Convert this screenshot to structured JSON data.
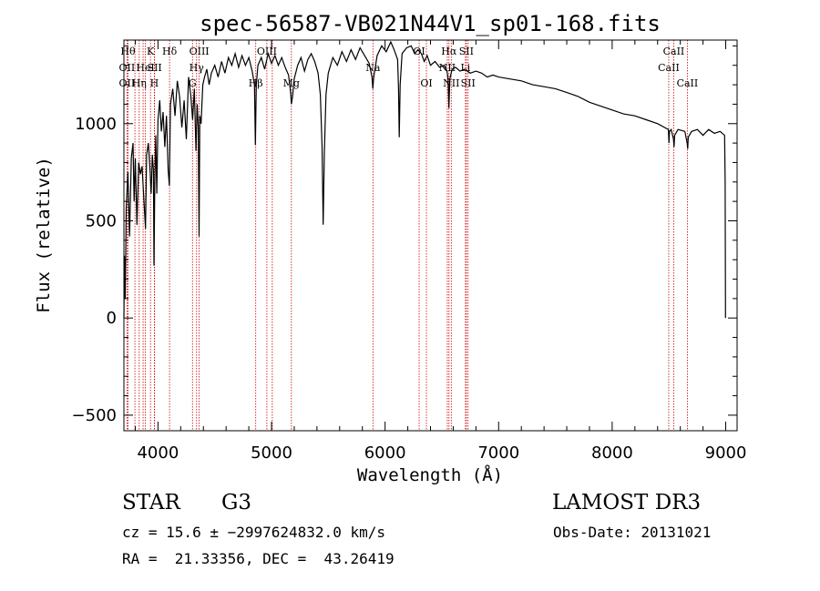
{
  "chart_data": {
    "type": "line",
    "title": "spec-56587-VB021N44V1_sp01-168.fits",
    "xlabel": "Wavelength (Å)",
    "ylabel": "Flux (relative)",
    "xlim": [
      3700,
      9100
    ],
    "ylim": [
      -580,
      1430
    ],
    "xticks": [
      4000,
      5000,
      6000,
      7000,
      8000,
      9000
    ],
    "xtick_labels": [
      "4000",
      "5000",
      "6000",
      "7000",
      "8000",
      "9000"
    ],
    "yticks": [
      -500,
      0,
      500,
      1000
    ],
    "ytick_labels": [
      "−500",
      "0",
      "500",
      "1000"
    ],
    "x_minor_step": 200,
    "y_minor_step": 100,
    "series": [
      {
        "name": "spectrum",
        "color": "#000000",
        "points": [
          [
            3700,
            0
          ],
          [
            3705,
            320
          ],
          [
            3712,
            100
          ],
          [
            3720,
            560
          ],
          [
            3735,
            750
          ],
          [
            3750,
            420
          ],
          [
            3765,
            820
          ],
          [
            3780,
            900
          ],
          [
            3790,
            600
          ],
          [
            3800,
            820
          ],
          [
            3815,
            480
          ],
          [
            3830,
            800
          ],
          [
            3845,
            740
          ],
          [
            3860,
            780
          ],
          [
            3875,
            620
          ],
          [
            3890,
            460
          ],
          [
            3900,
            840
          ],
          [
            3915,
            900
          ],
          [
            3930,
            760
          ],
          [
            3940,
            640
          ],
          [
            3950,
            840
          ],
          [
            3960,
            760
          ],
          [
            3965,
            270
          ],
          [
            3972,
            700
          ],
          [
            3980,
            940
          ],
          [
            3990,
            640
          ],
          [
            4000,
            1020
          ],
          [
            4015,
            1120
          ],
          [
            4030,
            960
          ],
          [
            4045,
            1060
          ],
          [
            4060,
            880
          ],
          [
            4075,
            1040
          ],
          [
            4090,
            760
          ],
          [
            4100,
            680
          ],
          [
            4110,
            1100
          ],
          [
            4130,
            1180
          ],
          [
            4150,
            1040
          ],
          [
            4170,
            1220
          ],
          [
            4190,
            1140
          ],
          [
            4210,
            980
          ],
          [
            4230,
            1120
          ],
          [
            4250,
            920
          ],
          [
            4270,
            1240
          ],
          [
            4290,
            1140
          ],
          [
            4305,
            1020
          ],
          [
            4320,
            1180
          ],
          [
            4335,
            860
          ],
          [
            4345,
            1100
          ],
          [
            4355,
            980
          ],
          [
            4362,
            420
          ],
          [
            4368,
            1040
          ],
          [
            4380,
            1000
          ],
          [
            4395,
            1200
          ],
          [
            4410,
            1240
          ],
          [
            4430,
            1280
          ],
          [
            4450,
            1200
          ],
          [
            4470,
            1260
          ],
          [
            4500,
            1300
          ],
          [
            4530,
            1240
          ],
          [
            4560,
            1320
          ],
          [
            4590,
            1260
          ],
          [
            4620,
            1340
          ],
          [
            4650,
            1300
          ],
          [
            4680,
            1360
          ],
          [
            4710,
            1290
          ],
          [
            4740,
            1350
          ],
          [
            4770,
            1300
          ],
          [
            4800,
            1340
          ],
          [
            4830,
            1270
          ],
          [
            4850,
            1200
          ],
          [
            4858,
            890
          ],
          [
            4866,
            1200
          ],
          [
            4880,
            1300
          ],
          [
            4910,
            1340
          ],
          [
            4940,
            1280
          ],
          [
            4970,
            1360
          ],
          [
            5000,
            1310
          ],
          [
            5030,
            1350
          ],
          [
            5060,
            1300
          ],
          [
            5090,
            1340
          ],
          [
            5120,
            1290
          ],
          [
            5150,
            1250
          ],
          [
            5168,
            1160
          ],
          [
            5175,
            1100
          ],
          [
            5185,
            1140
          ],
          [
            5200,
            1230
          ],
          [
            5230,
            1300
          ],
          [
            5260,
            1340
          ],
          [
            5290,
            1270
          ],
          [
            5320,
            1330
          ],
          [
            5350,
            1360
          ],
          [
            5380,
            1320
          ],
          [
            5410,
            1260
          ],
          [
            5430,
            1150
          ],
          [
            5445,
            880
          ],
          [
            5455,
            480
          ],
          [
            5465,
            850
          ],
          [
            5480,
            1150
          ],
          [
            5500,
            1260
          ],
          [
            5540,
            1340
          ],
          [
            5580,
            1300
          ],
          [
            5620,
            1370
          ],
          [
            5660,
            1320
          ],
          [
            5700,
            1380
          ],
          [
            5740,
            1330
          ],
          [
            5780,
            1390
          ],
          [
            5820,
            1350
          ],
          [
            5860,
            1310
          ],
          [
            5885,
            1240
          ],
          [
            5892,
            1180
          ],
          [
            5900,
            1240
          ],
          [
            5930,
            1350
          ],
          [
            5970,
            1400
          ],
          [
            6010,
            1370
          ],
          [
            6050,
            1420
          ],
          [
            6080,
            1380
          ],
          [
            6110,
            1330
          ],
          [
            6118,
            1180
          ],
          [
            6125,
            930
          ],
          [
            6133,
            1200
          ],
          [
            6150,
            1360
          ],
          [
            6190,
            1390
          ],
          [
            6230,
            1400
          ],
          [
            6260,
            1360
          ],
          [
            6290,
            1380
          ],
          [
            6320,
            1360
          ],
          [
            6345,
            1320
          ],
          [
            6370,
            1350
          ],
          [
            6400,
            1300
          ],
          [
            6440,
            1320
          ],
          [
            6480,
            1290
          ],
          [
            6520,
            1300
          ],
          [
            6545,
            1270
          ],
          [
            6555,
            1230
          ],
          [
            6562,
            1080
          ],
          [
            6570,
            1230
          ],
          [
            6590,
            1280
          ],
          [
            6620,
            1290
          ],
          [
            6660,
            1270
          ],
          [
            6700,
            1280
          ],
          [
            6750,
            1260
          ],
          [
            6800,
            1270
          ],
          [
            6850,
            1260
          ],
          [
            6900,
            1240
          ],
          [
            6950,
            1250
          ],
          [
            7000,
            1240
          ],
          [
            7100,
            1230
          ],
          [
            7200,
            1220
          ],
          [
            7300,
            1200
          ],
          [
            7400,
            1190
          ],
          [
            7500,
            1180
          ],
          [
            7600,
            1160
          ],
          [
            7700,
            1140
          ],
          [
            7800,
            1110
          ],
          [
            7900,
            1090
          ],
          [
            8000,
            1070
          ],
          [
            8100,
            1050
          ],
          [
            8200,
            1040
          ],
          [
            8300,
            1020
          ],
          [
            8400,
            1000
          ],
          [
            8495,
            970
          ],
          [
            8500,
            900
          ],
          [
            8505,
            960
          ],
          [
            8520,
            970
          ],
          [
            8540,
            920
          ],
          [
            8545,
            880
          ],
          [
            8550,
            940
          ],
          [
            8580,
            970
          ],
          [
            8640,
            960
          ],
          [
            8660,
            900
          ],
          [
            8665,
            870
          ],
          [
            8670,
            930
          ],
          [
            8700,
            960
          ],
          [
            8750,
            970
          ],
          [
            8800,
            940
          ],
          [
            8850,
            970
          ],
          [
            8900,
            950
          ],
          [
            8950,
            960
          ],
          [
            8990,
            940
          ],
          [
            8995,
            700
          ],
          [
            8998,
            0
          ]
        ]
      }
    ],
    "spectral_lines": [
      {
        "wl": 3736,
        "label": "Hθ",
        "row": 0
      },
      {
        "wl": 3727,
        "label": "OII",
        "row": 1
      },
      {
        "wl": 3727,
        "label": "OII",
        "row": 2
      },
      {
        "wl": 3797,
        "label": "",
        "row": -1
      },
      {
        "wl": 3835,
        "label": "Hη",
        "row": 2
      },
      {
        "wl": 3869,
        "label": "",
        "row": -1
      },
      {
        "wl": 3889,
        "label": "HeI",
        "row": 1
      },
      {
        "wl": 3934,
        "label": "K",
        "row": 0
      },
      {
        "wl": 3968,
        "label": "H",
        "row": 2
      },
      {
        "wl": 3970,
        "label": "SII",
        "row": 1
      },
      {
        "wl": 4102,
        "label": "Hδ",
        "row": 0
      },
      {
        "wl": 4304,
        "label": "G",
        "row": 2
      },
      {
        "wl": 4340,
        "label": "Hγ",
        "row": 1
      },
      {
        "wl": 4363,
        "label": "OIII",
        "row": 0
      },
      {
        "wl": 4861,
        "label": "Hβ",
        "row": 2
      },
      {
        "wl": 4959,
        "label": "OIII",
        "row": 0
      },
      {
        "wl": 5007,
        "label": "",
        "row": -1
      },
      {
        "wl": 5175,
        "label": "Mg",
        "row": 2
      },
      {
        "wl": 5893,
        "label": "Na",
        "row": 1
      },
      {
        "wl": 6300,
        "label": "OI",
        "row": 0
      },
      {
        "wl": 6364,
        "label": "OI",
        "row": 2
      },
      {
        "wl": 6548,
        "label": "NII",
        "row": 1
      },
      {
        "wl": 6563,
        "label": "Hα",
        "row": 0
      },
      {
        "wl": 6583,
        "label": "NII",
        "row": 2
      },
      {
        "wl": 6708,
        "label": "Li",
        "row": 1
      },
      {
        "wl": 6716,
        "label": "SII",
        "row": 0
      },
      {
        "wl": 6731,
        "label": "SII",
        "row": 2
      },
      {
        "wl": 8498,
        "label": "CaII",
        "row": 1
      },
      {
        "wl": 8542,
        "label": "CaII",
        "row": 0
      },
      {
        "wl": 8662,
        "label": "CaII",
        "row": 2
      }
    ],
    "line_color": "#cc0000"
  },
  "info": {
    "object_class": "STAR",
    "subclass": "G3",
    "survey": "LAMOST DR3",
    "cz": "cz = 15.6 ± −2997624832.0 km/s",
    "obs_date": "Obs-Date: 20131021",
    "coords": "RA =  21.33356, DEC =  43.26419"
  }
}
